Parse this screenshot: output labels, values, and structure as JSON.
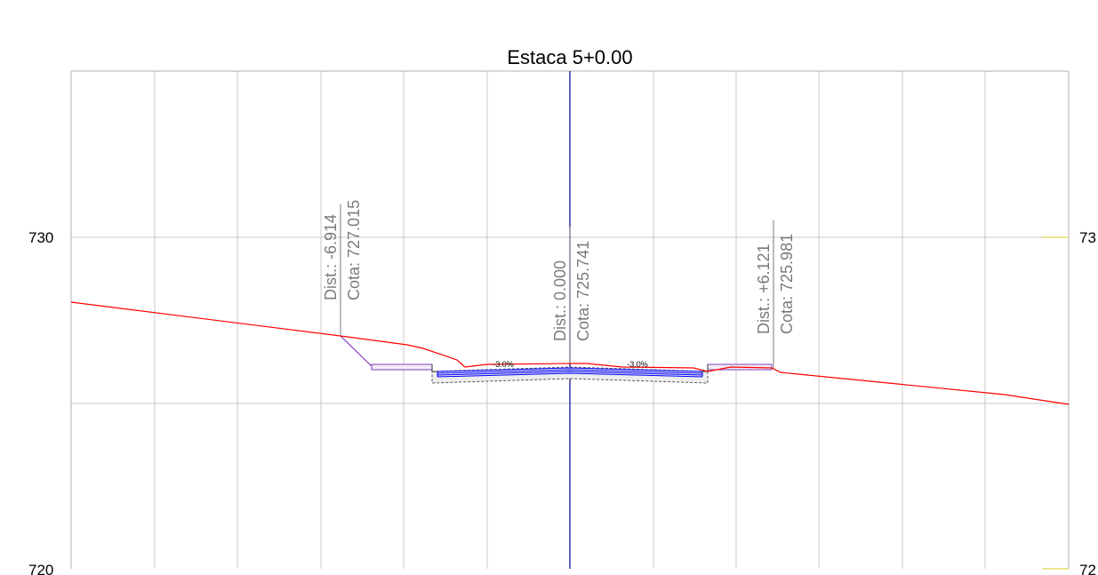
{
  "title": "Estaca 5+0.00",
  "elevation_labels": {
    "left": [
      "730",
      "720"
    ],
    "right": [
      "73",
      "72"
    ]
  },
  "callouts": [
    {
      "dist": "Dist.: -6.914",
      "cota": "Cota: 727.015"
    },
    {
      "dist": "Dist.: 0.000",
      "cota": "Cota: 725.741"
    },
    {
      "dist": "Dist.: +6.121",
      "cota": "Cota: 725.981"
    }
  ],
  "slopes": [
    "-3.0%",
    "-3.0%"
  ],
  "colors": {
    "grid": "#c8c8c8",
    "frame": "#b0b0b0",
    "terrain": "#ff0000",
    "axis": "#00007f",
    "pavement": "#0000ff",
    "cut_slope": "#7f3fbf",
    "callout_line": "#7a7a7a",
    "right_tick": "#e6dc6a"
  }
}
